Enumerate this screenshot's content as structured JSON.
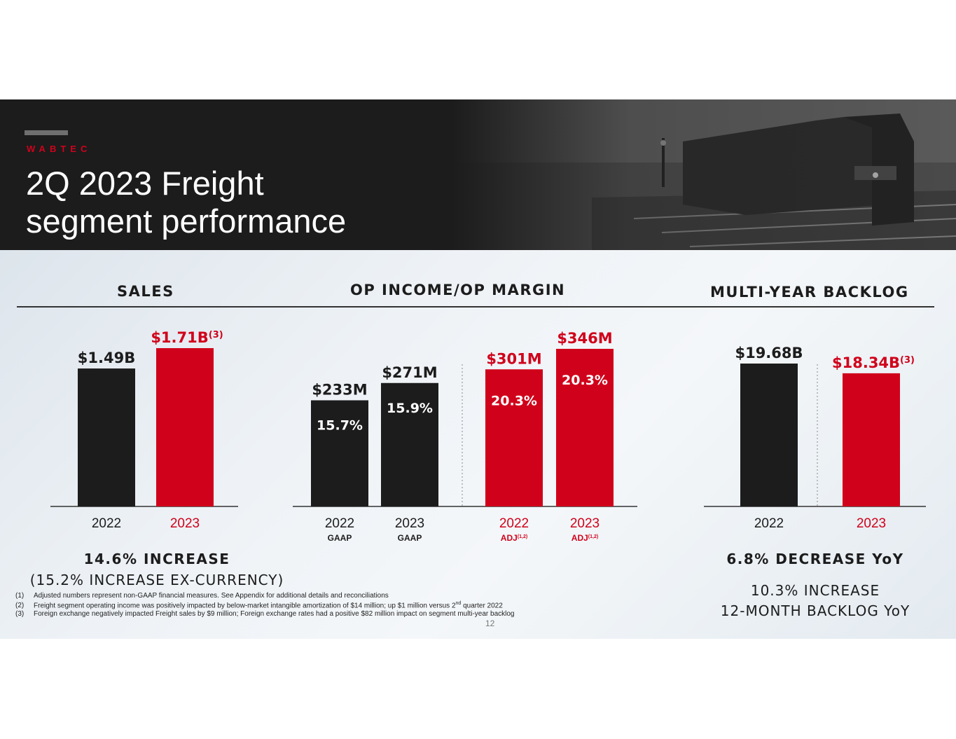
{
  "header": {
    "brand": "WABTEC",
    "title_line1": "2Q 2023 Freight",
    "title_line2": "segment performance"
  },
  "sections": {
    "sales": "SALES",
    "op_income": "OP INCOME/OP MARGIN",
    "backlog": "MULTI-YEAR BACKLOG"
  },
  "colors": {
    "black": "#1c1c1c",
    "red": "#d0021b"
  },
  "chart_data": [
    {
      "type": "bar",
      "name_ref": "SALES",
      "categories": [
        "2022",
        "2023"
      ],
      "values": [
        1.49,
        1.71
      ],
      "value_labels": [
        "$1.49B",
        "$1.71B"
      ],
      "label_superscripts": [
        "",
        "(3)"
      ],
      "bar_colors": [
        "#1c1c1c",
        "#d0021b"
      ]
    },
    {
      "type": "bar",
      "name_ref": "OP INCOME/OP MARGIN",
      "categories": [
        "2022",
        "2023",
        "2022",
        "2023"
      ],
      "sub_labels": [
        "GAAP",
        "GAAP",
        "ADJ",
        "ADJ"
      ],
      "sub_superscripts": [
        "",
        "",
        "(1,2)",
        "(1,2)"
      ],
      "values": [
        233,
        271,
        301,
        346
      ],
      "value_labels": [
        "$233M",
        "$271M",
        "$301M",
        "$346M"
      ],
      "margins": [
        "15.7%",
        "15.9%",
        "20.3%",
        "20.3%"
      ],
      "bar_colors": [
        "#1c1c1c",
        "#1c1c1c",
        "#d0021b",
        "#d0021b"
      ]
    },
    {
      "type": "bar",
      "name_ref": "MULTI-YEAR BACKLOG",
      "categories": [
        "2022",
        "2023"
      ],
      "values": [
        19.68,
        18.34
      ],
      "value_labels": [
        "$19.68B",
        "$18.34B"
      ],
      "label_superscripts": [
        "",
        "(3)"
      ],
      "bar_colors": [
        "#1c1c1c",
        "#d0021b"
      ]
    }
  ],
  "summaries": {
    "sales_main": "14.6% INCREASE",
    "sales_sub": "(15.2% INCREASE EX-CURRENCY)",
    "backlog_main": "6.8% DECREASE YoY",
    "backlog_sub1": "10.3% INCREASE",
    "backlog_sub2": "12-MONTH BACKLOG YoY"
  },
  "footnotes": [
    {
      "num": "(1)",
      "text": "Adjusted numbers represent non-GAAP financial measures. See Appendix for additional details and reconciliations"
    },
    {
      "num": "(2)",
      "text_before": "Freight segment operating income was positively impacted by below-market intangible amortization of $14 million; up $1 million versus 2",
      "sup": "nd",
      "text_after": " quarter 2022"
    },
    {
      "num": "(3)",
      "text": "Foreign exchange negatively impacted Freight sales by $9 million; Foreign exchange rates had a positive $82 million impact on segment multi-year backlog"
    }
  ],
  "page_number": "12"
}
